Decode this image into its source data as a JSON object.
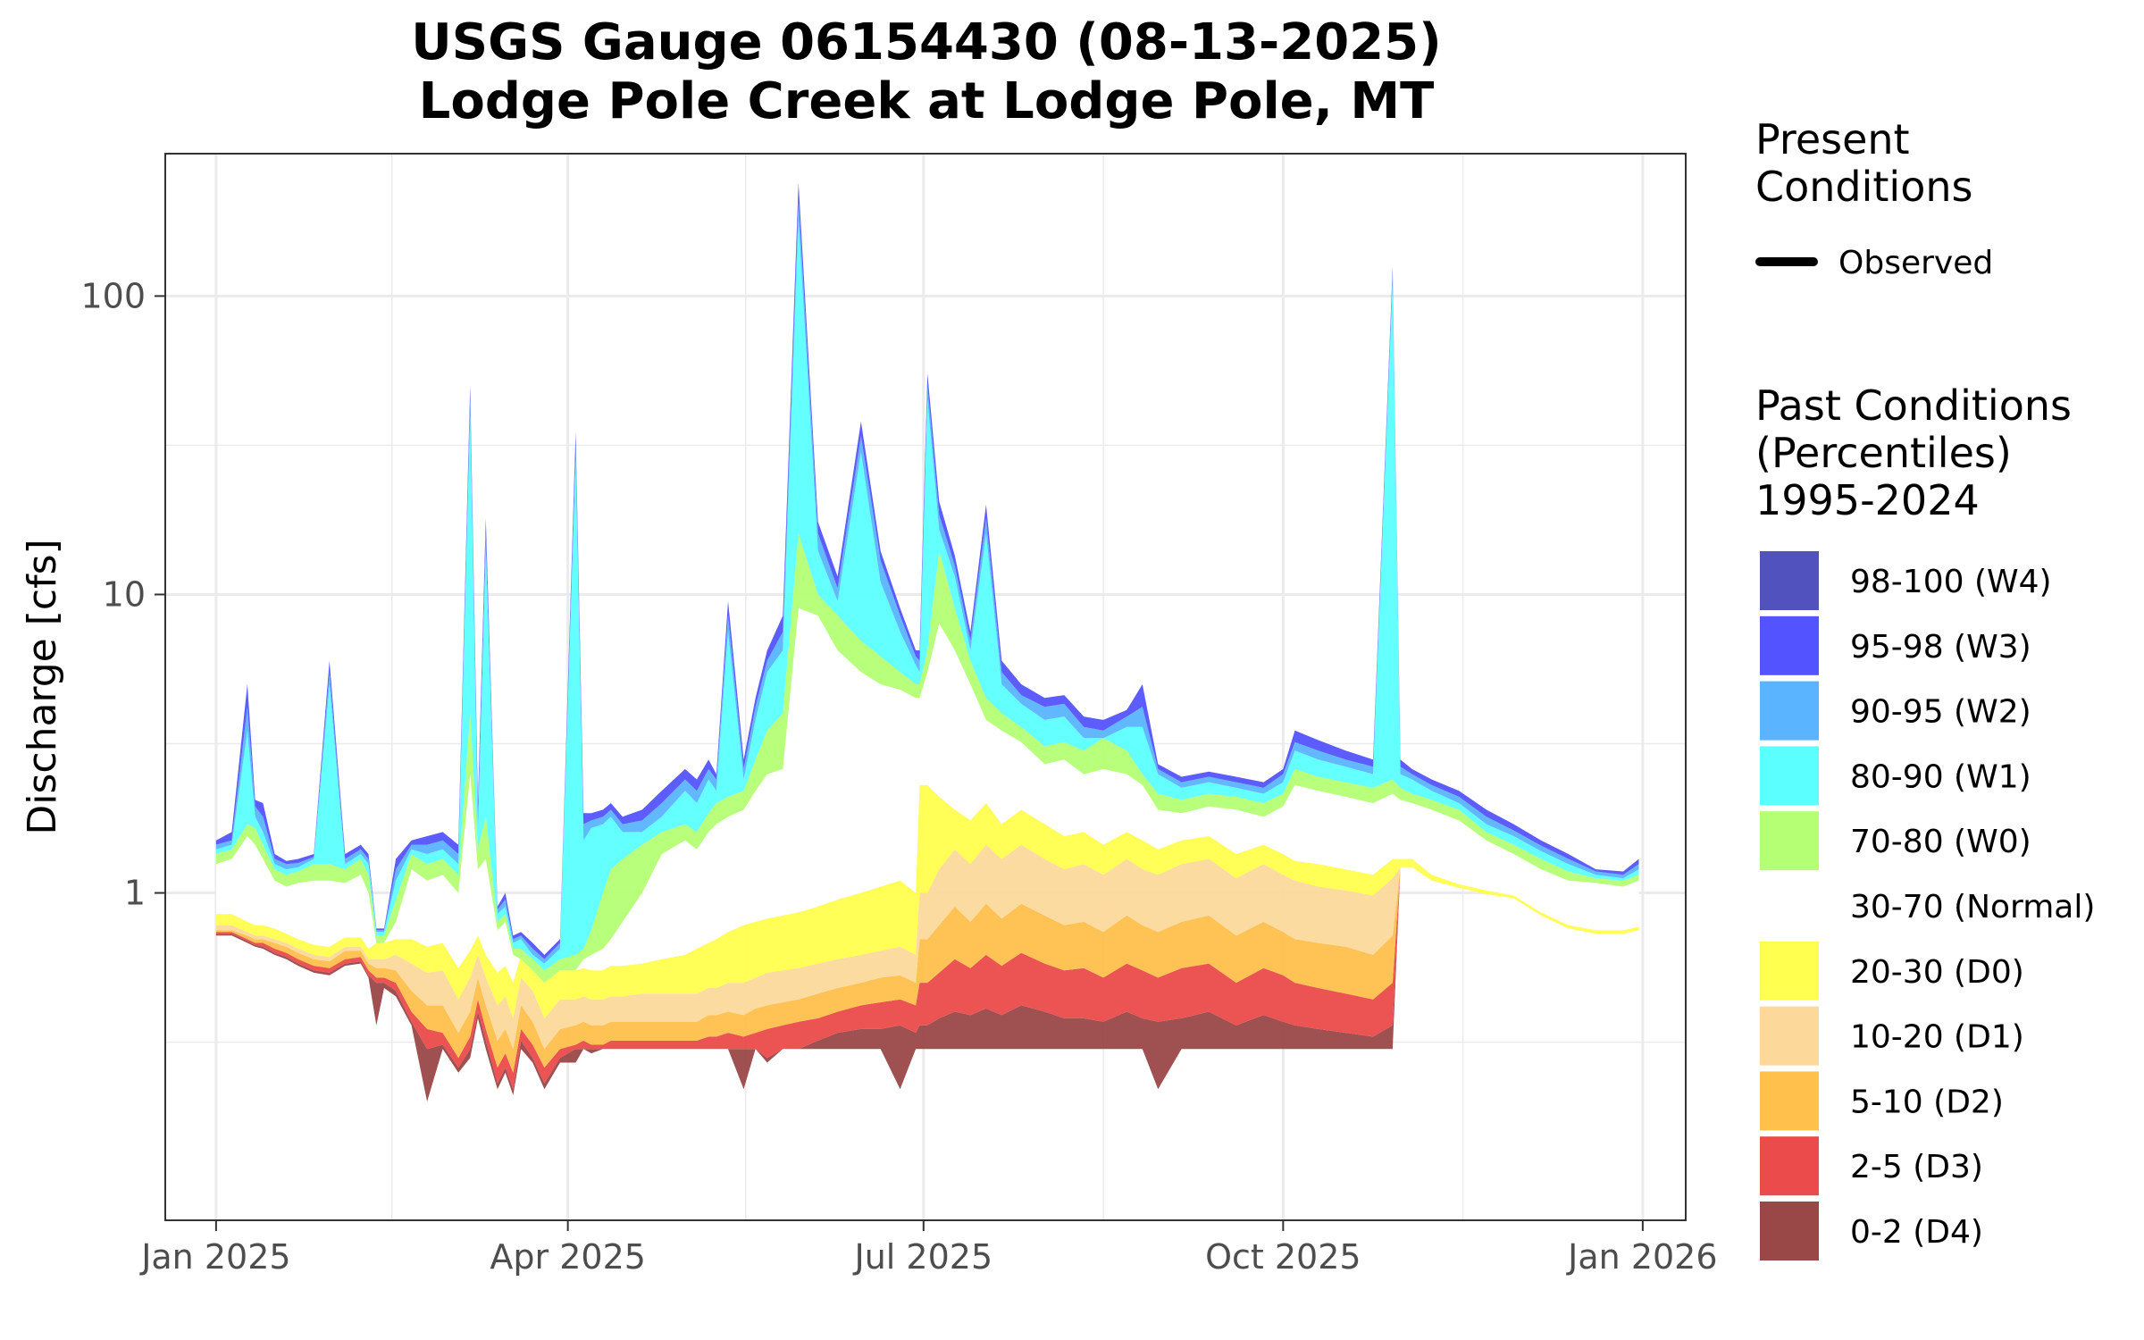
{
  "chart_data": {
    "type": "area",
    "title_line1": "USGS Gauge 06154430 (08-13-2025)",
    "title_line2": "Lodge Pole Creek at Lodge Pole, MT",
    "xlabel": "",
    "ylabel": "Discharge [cfs]",
    "y_scale": "log",
    "ylim": [
      0.08,
      300
    ],
    "y_ticks": [
      {
        "value": 1,
        "label": "1"
      },
      {
        "value": 10,
        "label": "10"
      },
      {
        "value": 100,
        "label": "100"
      }
    ],
    "xlim": [
      "2024-12-19",
      "2026-01-12"
    ],
    "x_ticks": [
      {
        "value": "2025-01-01",
        "label": "Jan 2025"
      },
      {
        "value": "2025-04-01",
        "label": "Apr 2025"
      },
      {
        "value": "2025-07-01",
        "label": "Jul 2025"
      },
      {
        "value": "2025-10-01",
        "label": "Oct 2025"
      },
      {
        "value": "2026-01-01",
        "label": "Jan 2026"
      }
    ],
    "grid": true,
    "legend_position": "right",
    "present_legend": {
      "title_line1": "Present",
      "title_line2": "Conditions",
      "observed_label": "Observed",
      "observed_color": "#000000"
    },
    "past_legend": {
      "title_line1": "Past Conditions",
      "title_line2": "(Percentiles)",
      "title_line3": "1995-2024"
    },
    "bands": [
      {
        "label": "98-100 (W4)",
        "color": "#5252BE"
      },
      {
        "label": "95-98 (W3)",
        "color": "#5353FF"
      },
      {
        "label": "90-95 (W2)",
        "color": "#5AB4FF"
      },
      {
        "label": "80-90 (W1)",
        "color": "#5CFFFF"
      },
      {
        "label": "70-80 (W0)",
        "color": "#B4FF74"
      },
      {
        "label": "30-70 (Normal)",
        "color": "#FFFFFF"
      },
      {
        "label": "20-30 (D0)",
        "color": "#FFFF4F"
      },
      {
        "label": "10-20 (D1)",
        "color": "#FCD99B"
      },
      {
        "label": "5-10 (D2)",
        "color": "#FFC04C"
      },
      {
        "label": "2-5 (D3)",
        "color": "#EB4B4B"
      },
      {
        "label": "0-2 (D4)",
        "color": "#9A4747"
      }
    ],
    "percentile_series": {
      "x": [
        "2025-01-01",
        "2025-01-05",
        "2025-01-09",
        "2025-01-11",
        "2025-01-13",
        "2025-01-16",
        "2025-01-19",
        "2025-01-22",
        "2025-01-26",
        "2025-01-30",
        "2025-02-03",
        "2025-02-07",
        "2025-02-09",
        "2025-02-11",
        "2025-02-13",
        "2025-02-16",
        "2025-02-20",
        "2025-02-24",
        "2025-02-28",
        "2025-03-04",
        "2025-03-07",
        "2025-03-09",
        "2025-03-11",
        "2025-03-14",
        "2025-03-16",
        "2025-03-18",
        "2025-03-20",
        "2025-03-23",
        "2025-03-26",
        "2025-03-30",
        "2025-04-03",
        "2025-04-05",
        "2025-04-07",
        "2025-04-10",
        "2025-04-12",
        "2025-04-15",
        "2025-04-20",
        "2025-04-25",
        "2025-05-01",
        "2025-05-04",
        "2025-05-07",
        "2025-05-09",
        "2025-05-12",
        "2025-05-16",
        "2025-05-19",
        "2025-05-22",
        "2025-05-26",
        "2025-05-30",
        "2025-06-04",
        "2025-06-09",
        "2025-06-15",
        "2025-06-20",
        "2025-06-25",
        "2025-06-29",
        "2025-06-30",
        "2025-07-02",
        "2025-07-05",
        "2025-07-09",
        "2025-07-13",
        "2025-07-17",
        "2025-07-21",
        "2025-07-26",
        "2025-08-01",
        "2025-08-06",
        "2025-08-11",
        "2025-08-16",
        "2025-08-22",
        "2025-08-26",
        "2025-08-30",
        "2025-09-05",
        "2025-09-12",
        "2025-09-19",
        "2025-09-26",
        "2025-10-01",
        "2025-10-04",
        "2025-10-10",
        "2025-10-17",
        "2025-10-24",
        "2025-10-29",
        "2025-10-31",
        "2025-11-03",
        "2025-11-08",
        "2025-11-15",
        "2025-11-22",
        "2025-11-29",
        "2025-12-06",
        "2025-12-13",
        "2025-12-20",
        "2025-12-27",
        "2025-12-31"
      ],
      "bounds": [
        [
          0.72,
          0.72,
          0.68,
          0.66,
          0.65,
          0.62,
          0.6,
          0.57,
          0.54,
          0.53,
          0.57,
          0.58,
          0.52,
          0.36,
          0.48,
          0.45,
          0.36,
          0.2,
          0.3,
          0.25,
          0.28,
          0.38,
          0.3,
          0.22,
          0.25,
          0.21,
          0.3,
          0.27,
          0.22,
          0.27,
          0.27,
          0.3,
          0.29,
          0.3,
          0.3,
          0.3,
          0.3,
          0.3,
          0.3,
          0.3,
          0.3,
          0.3,
          0.3,
          0.22,
          0.3,
          0.27,
          0.3,
          0.3,
          0.3,
          0.3,
          0.3,
          0.3,
          0.22,
          0.3,
          0.3,
          0.3,
          0.3,
          0.3,
          0.3,
          0.3,
          0.3,
          0.3,
          0.3,
          0.3,
          0.3,
          0.3,
          0.3,
          0.3,
          0.22,
          0.3,
          0.3,
          0.3,
          0.3,
          0.3,
          0.3,
          0.3,
          0.3,
          0.3,
          0.3,
          1.22,
          1.22,
          1.1,
          1.04,
          0.99,
          0.96,
          0.84,
          0.76,
          0.73,
          0.73,
          0.75
        ],
        [
          0.73,
          0.73,
          0.69,
          0.67,
          0.66,
          0.63,
          0.61,
          0.58,
          0.55,
          0.54,
          0.58,
          0.59,
          0.53,
          0.5,
          0.5,
          0.47,
          0.37,
          0.3,
          0.31,
          0.26,
          0.3,
          0.4,
          0.32,
          0.23,
          0.26,
          0.22,
          0.32,
          0.28,
          0.23,
          0.28,
          0.3,
          0.3,
          0.3,
          0.3,
          0.3,
          0.3,
          0.3,
          0.3,
          0.3,
          0.3,
          0.3,
          0.3,
          0.3,
          0.3,
          0.3,
          0.28,
          0.3,
          0.3,
          0.32,
          0.34,
          0.35,
          0.35,
          0.36,
          0.34,
          0.36,
          0.36,
          0.38,
          0.4,
          0.39,
          0.41,
          0.39,
          0.42,
          0.4,
          0.38,
          0.38,
          0.37,
          0.4,
          0.38,
          0.37,
          0.38,
          0.4,
          0.36,
          0.39,
          0.37,
          0.36,
          0.35,
          0.34,
          0.33,
          0.36,
          1.22,
          1.22,
          1.1,
          1.04,
          0.99,
          0.96,
          0.84,
          0.76,
          0.73,
          0.73,
          0.75
        ],
        [
          0.74,
          0.74,
          0.7,
          0.68,
          0.68,
          0.65,
          0.63,
          0.6,
          0.57,
          0.56,
          0.6,
          0.61,
          0.55,
          0.52,
          0.52,
          0.5,
          0.4,
          0.35,
          0.34,
          0.28,
          0.33,
          0.44,
          0.35,
          0.26,
          0.29,
          0.25,
          0.35,
          0.31,
          0.26,
          0.3,
          0.31,
          0.32,
          0.31,
          0.31,
          0.32,
          0.32,
          0.32,
          0.32,
          0.32,
          0.32,
          0.33,
          0.33,
          0.34,
          0.33,
          0.34,
          0.35,
          0.36,
          0.37,
          0.38,
          0.4,
          0.42,
          0.43,
          0.44,
          0.42,
          0.5,
          0.5,
          0.54,
          0.6,
          0.56,
          0.62,
          0.57,
          0.63,
          0.58,
          0.55,
          0.56,
          0.52,
          0.58,
          0.55,
          0.52,
          0.56,
          0.58,
          0.5,
          0.56,
          0.53,
          0.5,
          0.48,
          0.46,
          0.44,
          0.5,
          1.22,
          1.22,
          1.1,
          1.04,
          0.99,
          0.96,
          0.84,
          0.76,
          0.73,
          0.73,
          0.75
        ],
        [
          0.75,
          0.75,
          0.72,
          0.7,
          0.7,
          0.68,
          0.66,
          0.63,
          0.6,
          0.59,
          0.64,
          0.64,
          0.58,
          0.56,
          0.56,
          0.55,
          0.47,
          0.42,
          0.42,
          0.34,
          0.4,
          0.52,
          0.42,
          0.32,
          0.35,
          0.3,
          0.42,
          0.37,
          0.3,
          0.35,
          0.36,
          0.37,
          0.36,
          0.36,
          0.37,
          0.37,
          0.37,
          0.37,
          0.37,
          0.37,
          0.39,
          0.39,
          0.4,
          0.39,
          0.41,
          0.42,
          0.43,
          0.44,
          0.46,
          0.48,
          0.5,
          0.52,
          0.53,
          0.5,
          0.7,
          0.7,
          0.78,
          0.9,
          0.8,
          0.92,
          0.82,
          0.92,
          0.84,
          0.78,
          0.8,
          0.74,
          0.84,
          0.78,
          0.74,
          0.8,
          0.84,
          0.72,
          0.8,
          0.74,
          0.7,
          0.68,
          0.66,
          0.62,
          0.72,
          1.22,
          1.22,
          1.1,
          1.04,
          0.99,
          0.96,
          0.84,
          0.76,
          0.73,
          0.73,
          0.75
        ],
        [
          0.78,
          0.78,
          0.74,
          0.72,
          0.72,
          0.7,
          0.68,
          0.65,
          0.62,
          0.61,
          0.66,
          0.66,
          0.6,
          0.6,
          0.6,
          0.62,
          0.58,
          0.54,
          0.55,
          0.44,
          0.52,
          0.62,
          0.52,
          0.42,
          0.45,
          0.38,
          0.52,
          0.47,
          0.38,
          0.44,
          0.44,
          0.45,
          0.44,
          0.44,
          0.45,
          0.45,
          0.46,
          0.46,
          0.46,
          0.46,
          0.48,
          0.48,
          0.5,
          0.5,
          0.52,
          0.54,
          0.55,
          0.56,
          0.58,
          0.6,
          0.62,
          0.64,
          0.66,
          0.62,
          1.0,
          1.0,
          1.2,
          1.4,
          1.25,
          1.45,
          1.3,
          1.45,
          1.3,
          1.2,
          1.25,
          1.15,
          1.3,
          1.2,
          1.15,
          1.25,
          1.3,
          1.12,
          1.25,
          1.15,
          1.1,
          1.05,
          1.02,
          0.98,
          1.12,
          1.22,
          1.22,
          1.1,
          1.04,
          0.99,
          0.96,
          0.84,
          0.76,
          0.73,
          0.73,
          0.75
        ],
        [
          0.85,
          0.85,
          0.8,
          0.78,
          0.78,
          0.76,
          0.73,
          0.7,
          0.67,
          0.66,
          0.71,
          0.71,
          0.65,
          0.68,
          0.68,
          0.7,
          0.7,
          0.66,
          0.68,
          0.56,
          0.64,
          0.72,
          0.62,
          0.54,
          0.57,
          0.5,
          0.62,
          0.58,
          0.5,
          0.55,
          0.55,
          0.56,
          0.55,
          0.55,
          0.57,
          0.57,
          0.58,
          0.6,
          0.62,
          0.65,
          0.68,
          0.7,
          0.74,
          0.78,
          0.8,
          0.82,
          0.84,
          0.86,
          0.9,
          0.95,
          1.0,
          1.05,
          1.1,
          1.0,
          2.3,
          2.3,
          2.1,
          1.9,
          1.75,
          2.0,
          1.7,
          1.9,
          1.7,
          1.55,
          1.6,
          1.45,
          1.6,
          1.5,
          1.4,
          1.5,
          1.55,
          1.35,
          1.45,
          1.35,
          1.28,
          1.25,
          1.2,
          1.15,
          1.3,
          1.3,
          1.3,
          1.15,
          1.07,
          1.02,
          0.98,
          0.86,
          0.78,
          0.75,
          0.75,
          0.77
        ],
        [
          1.25,
          1.3,
          1.55,
          1.45,
          1.3,
          1.1,
          1.05,
          1.08,
          1.1,
          1.1,
          1.08,
          1.15,
          1.0,
          0.68,
          0.68,
          0.8,
          1.2,
          1.1,
          1.15,
          1.0,
          2.5,
          1.2,
          1.3,
          0.75,
          0.8,
          0.62,
          0.6,
          0.55,
          0.5,
          0.55,
          0.55,
          0.6,
          0.62,
          0.65,
          0.7,
          0.8,
          1.0,
          1.35,
          1.5,
          1.4,
          1.6,
          1.7,
          1.8,
          1.9,
          2.2,
          2.5,
          2.6,
          9.0,
          8.5,
          6.5,
          5.5,
          5.0,
          4.8,
          4.5,
          4.5,
          5.5,
          8.0,
          6.5,
          5.0,
          3.8,
          3.5,
          3.2,
          2.7,
          2.8,
          2.5,
          2.6,
          2.5,
          2.3,
          1.9,
          1.85,
          1.95,
          1.9,
          1.8,
          1.95,
          2.3,
          2.2,
          2.1,
          2.0,
          2.15,
          2.05,
          2.0,
          1.9,
          1.75,
          1.5,
          1.35,
          1.2,
          1.1,
          1.08,
          1.05,
          1.1
        ],
        [
          1.35,
          1.4,
          1.7,
          1.65,
          1.45,
          1.2,
          1.15,
          1.18,
          1.25,
          1.25,
          1.2,
          1.3,
          1.15,
          0.72,
          0.72,
          0.95,
          1.35,
          1.25,
          1.3,
          1.15,
          4.0,
          1.4,
          1.8,
          0.8,
          0.85,
          0.65,
          0.65,
          0.6,
          0.55,
          0.6,
          0.62,
          0.65,
          0.75,
          1.0,
          1.2,
          1.3,
          1.45,
          1.6,
          1.7,
          1.6,
          1.85,
          2.0,
          2.1,
          2.2,
          2.8,
          3.5,
          4.0,
          16.0,
          10.0,
          8.5,
          7.0,
          6.2,
          5.5,
          5.0,
          5.0,
          6.5,
          14.0,
          9.0,
          6.0,
          4.5,
          4.0,
          3.6,
          3.1,
          3.2,
          3.0,
          3.3,
          3.0,
          2.5,
          2.15,
          2.05,
          2.15,
          2.1,
          2.0,
          2.15,
          2.6,
          2.45,
          2.35,
          2.25,
          2.4,
          2.25,
          2.15,
          2.05,
          1.9,
          1.6,
          1.45,
          1.3,
          1.18,
          1.12,
          1.1,
          1.15
        ],
        [
          1.4,
          1.45,
          3.5,
          1.8,
          1.6,
          1.25,
          1.2,
          1.22,
          1.3,
          5.0,
          1.25,
          1.35,
          1.25,
          0.74,
          0.74,
          1.1,
          1.4,
          1.35,
          1.4,
          1.25,
          40.0,
          1.6,
          14.0,
          0.85,
          0.9,
          0.68,
          0.7,
          0.62,
          0.58,
          0.65,
          28.0,
          1.5,
          1.65,
          1.7,
          1.8,
          1.6,
          1.6,
          1.8,
          2.2,
          2.0,
          2.4,
          2.2,
          7.5,
          2.4,
          3.8,
          5.5,
          6.5,
          180.0,
          14.0,
          9.5,
          30.0,
          11.0,
          7.5,
          5.8,
          5.5,
          45.0,
          16.5,
          11.5,
          6.5,
          16.0,
          5.0,
          4.3,
          3.8,
          3.9,
          3.3,
          3.3,
          3.6,
          3.6,
          2.5,
          2.25,
          2.35,
          2.25,
          2.15,
          2.35,
          3.0,
          2.8,
          2.65,
          2.5,
          110.0,
          2.5,
          2.4,
          2.2,
          2.0,
          1.7,
          1.55,
          1.38,
          1.25,
          1.15,
          1.12,
          1.2
        ],
        [
          1.45,
          1.5,
          4.2,
          1.95,
          1.8,
          1.3,
          1.25,
          1.26,
          1.32,
          5.5,
          1.3,
          1.4,
          1.3,
          0.75,
          0.75,
          1.2,
          1.45,
          1.45,
          1.5,
          1.35,
          45.0,
          1.8,
          16.0,
          0.88,
          0.95,
          0.7,
          0.72,
          0.65,
          0.6,
          0.68,
          31.0,
          1.7,
          1.75,
          1.8,
          1.9,
          1.7,
          1.75,
          2.0,
          2.4,
          2.2,
          2.6,
          2.4,
          8.5,
          2.6,
          4.2,
          6.0,
          7.5,
          210.0,
          16.0,
          10.5,
          34.0,
          13.0,
          8.5,
          6.2,
          6.0,
          50.0,
          18.5,
          12.5,
          7.0,
          18.0,
          5.5,
          4.6,
          4.2,
          4.3,
          3.6,
          3.5,
          3.9,
          4.2,
          2.6,
          2.35,
          2.45,
          2.35,
          2.25,
          2.5,
          3.2,
          3.0,
          2.8,
          2.65,
          118.0,
          2.65,
          2.5,
          2.3,
          2.1,
          1.8,
          1.62,
          1.44,
          1.3,
          1.18,
          1.15,
          1.25
        ],
        [
          1.5,
          1.6,
          5.0,
          2.05,
          2.0,
          1.35,
          1.28,
          1.3,
          1.35,
          6.0,
          1.35,
          1.45,
          1.35,
          0.76,
          0.76,
          1.3,
          1.5,
          1.55,
          1.6,
          1.45,
          50.0,
          2.0,
          18.0,
          0.9,
          1.0,
          0.72,
          0.74,
          0.68,
          0.62,
          0.7,
          35.0,
          1.85,
          1.85,
          1.9,
          2.0,
          1.8,
          1.9,
          2.2,
          2.6,
          2.4,
          2.8,
          2.5,
          9.5,
          2.8,
          4.5,
          6.5,
          8.5,
          240.0,
          17.5,
          11.5,
          38.0,
          14.0,
          9.0,
          6.5,
          6.5,
          55.0,
          20.5,
          13.5,
          7.5,
          20.0,
          6.0,
          5.0,
          4.5,
          4.6,
          3.9,
          3.8,
          4.1,
          5.0,
          2.7,
          2.45,
          2.55,
          2.45,
          2.35,
          2.6,
          3.5,
          3.25,
          3.0,
          2.8,
          125.0,
          2.8,
          2.6,
          2.4,
          2.2,
          1.9,
          1.7,
          1.5,
          1.35,
          1.2,
          1.18,
          1.3
        ]
      ]
    }
  }
}
